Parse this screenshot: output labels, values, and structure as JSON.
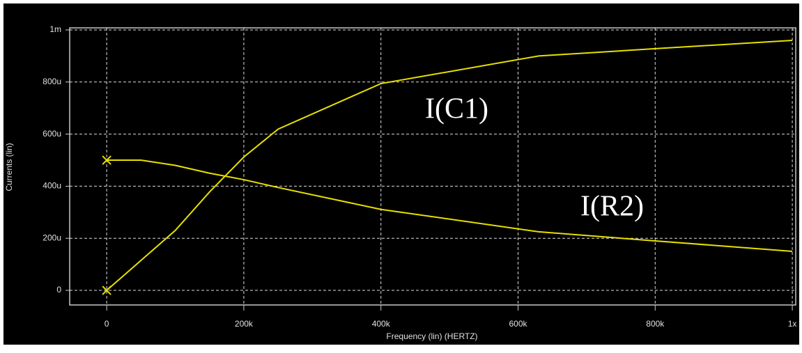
{
  "chart_data": {
    "type": "line",
    "xlabel": "Frequency (lin) (HERTZ)",
    "ylabel": "Currents (lin)",
    "x": [
      0,
      50000,
      100000,
      150000,
      200000,
      250000,
      400000,
      630000,
      800000,
      1000000
    ],
    "series": [
      {
        "name": "I(C1)",
        "color": "#e8e000",
        "values": [
          0,
          0.000115,
          0.00023,
          0.000378,
          0.000512,
          0.000619,
          0.000794,
          0.0009,
          0.000928,
          0.00096
        ]
      },
      {
        "name": "I(R2)",
        "color": "#e8e000",
        "values": [
          0.0005,
          0.0005,
          0.00048,
          0.00045,
          0.000425,
          0.000395,
          0.000311,
          0.000225,
          0.00019,
          0.00015
        ]
      }
    ],
    "xlim": [
      -54000,
      1005000
    ],
    "ylim": [
      -5.6e-05,
      0.001008
    ],
    "xticks": [
      0,
      {
        "value": 200000,
        "label": "200k"
      },
      {
        "value": 400000,
        "label": "400k"
      },
      {
        "value": 600000,
        "label": "600k"
      },
      {
        "value": 800000,
        "label": "800k"
      },
      {
        "value": 1000000,
        "label": "1x"
      }
    ],
    "yticks": [
      0,
      {
        "value": 0.0002,
        "label": "200u"
      },
      {
        "value": 0.0004,
        "label": "400u"
      },
      {
        "value": 0.0006,
        "label": "600u"
      },
      {
        "value": 0.0008,
        "label": "800u"
      },
      {
        "value": 0.001,
        "label": "1m"
      }
    ],
    "grid": true
  }
}
